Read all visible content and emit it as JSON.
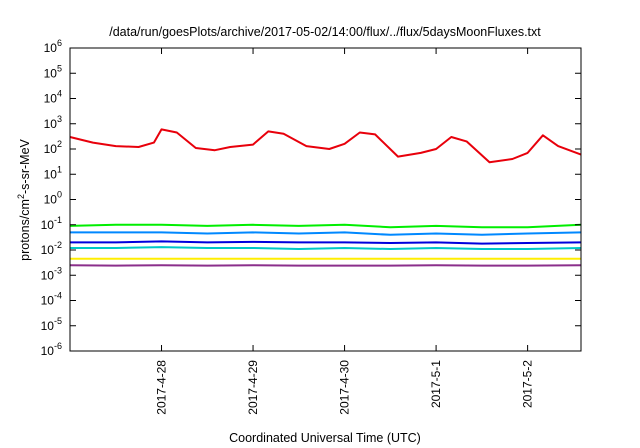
{
  "chart_data": {
    "type": "line",
    "title": "/data/run/goesPlots/archive/2017-05-02/14:00/flux/../flux/5daysMoonFluxes.txt",
    "xlabel": "Coordinated Universal Time (UTC)",
    "ylabel_parts": {
      "pre": "protons/cm",
      "sup": "2",
      "post": "-s-sr-MeV"
    },
    "y_scale": "log",
    "ylim": [
      1e-06,
      1000000.0
    ],
    "y_ticks": [
      {
        "base": "10",
        "exp": "-6"
      },
      {
        "base": "10",
        "exp": "-5"
      },
      {
        "base": "10",
        "exp": "-4"
      },
      {
        "base": "10",
        "exp": "-3"
      },
      {
        "base": "10",
        "exp": "-2"
      },
      {
        "base": "10",
        "exp": "-1"
      },
      {
        "base": "10",
        "exp": "0"
      },
      {
        "base": "10",
        "exp": "1"
      },
      {
        "base": "10",
        "exp": "2"
      },
      {
        "base": "10",
        "exp": "3"
      },
      {
        "base": "10",
        "exp": "4"
      },
      {
        "base": "10",
        "exp": "5"
      },
      {
        "base": "10",
        "exp": "6"
      }
    ],
    "xlim": [
      "2017-04-27T00:00",
      "2017-05-02T14:00"
    ],
    "x_tick_labels": [
      {
        "date": "2017-04-28",
        "label": "2017-4-28"
      },
      {
        "date": "2017-04-29",
        "label": "2017-4-29"
      },
      {
        "date": "2017-04-30",
        "label": "2017-4-30"
      },
      {
        "date": "2017-05-01",
        "label": "2017-5-1"
      },
      {
        "date": "2017-05-02",
        "label": "2017-5-2"
      }
    ],
    "grid": false,
    "legend": "none",
    "series": [
      {
        "color": "#e8000b",
        "x": [
          "2017-04-27T00:00",
          "2017-04-27T06:00",
          "2017-04-27T12:00",
          "2017-04-27T18:00",
          "2017-04-27T22:00",
          "2017-04-28T00:00",
          "2017-04-28T04:00",
          "2017-04-28T09:00",
          "2017-04-28T14:00",
          "2017-04-28T18:00",
          "2017-04-29T00:00",
          "2017-04-29T04:00",
          "2017-04-29T08:00",
          "2017-04-29T14:00",
          "2017-04-29T20:00",
          "2017-04-30T00:00",
          "2017-04-30T04:00",
          "2017-04-30T08:00",
          "2017-04-30T14:00",
          "2017-04-30T20:00",
          "2017-05-01T00:00",
          "2017-05-01T04:00",
          "2017-05-01T08:00",
          "2017-05-01T14:00",
          "2017-05-01T20:00",
          "2017-05-02T00:00",
          "2017-05-02T04:00",
          "2017-05-02T08:00",
          "2017-05-02T14:00"
        ],
        "y": [
          300,
          180,
          130,
          120,
          180,
          600,
          450,
          110,
          90,
          120,
          150,
          500,
          400,
          130,
          100,
          160,
          450,
          380,
          50,
          70,
          100,
          300,
          200,
          30,
          40,
          70,
          350,
          130,
          60
        ]
      },
      {
        "color": "#00ee00",
        "x": [
          "2017-04-27T00:00",
          "2017-04-27T12:00",
          "2017-04-28T00:00",
          "2017-04-28T12:00",
          "2017-04-29T00:00",
          "2017-04-29T12:00",
          "2017-04-30T00:00",
          "2017-04-30T12:00",
          "2017-05-01T00:00",
          "2017-05-01T12:00",
          "2017-05-02T00:00",
          "2017-05-02T14:00"
        ],
        "y": [
          0.09,
          0.1,
          0.1,
          0.09,
          0.1,
          0.09,
          0.1,
          0.08,
          0.09,
          0.08,
          0.08,
          0.1
        ]
      },
      {
        "color": "#0088ff",
        "x": [
          "2017-04-27T00:00",
          "2017-04-27T12:00",
          "2017-04-28T00:00",
          "2017-04-28T12:00",
          "2017-04-29T00:00",
          "2017-04-29T12:00",
          "2017-04-30T00:00",
          "2017-04-30T12:00",
          "2017-05-01T00:00",
          "2017-05-01T12:00",
          "2017-05-02T00:00",
          "2017-05-02T14:00"
        ],
        "y": [
          0.05,
          0.05,
          0.05,
          0.045,
          0.05,
          0.045,
          0.05,
          0.04,
          0.045,
          0.04,
          0.045,
          0.05
        ]
      },
      {
        "color": "#00c8c8",
        "x": [
          "2017-04-27T00:00",
          "2017-04-27T12:00",
          "2017-04-28T00:00",
          "2017-04-28T12:00",
          "2017-04-29T00:00",
          "2017-04-29T12:00",
          "2017-04-30T00:00",
          "2017-04-30T12:00",
          "2017-05-01T00:00",
          "2017-05-01T12:00",
          "2017-05-02T00:00",
          "2017-05-02T14:00"
        ],
        "y": [
          0.012,
          0.012,
          0.013,
          0.012,
          0.012,
          0.011,
          0.012,
          0.011,
          0.012,
          0.011,
          0.011,
          0.012
        ]
      },
      {
        "color": "#0000dd",
        "x": [
          "2017-04-27T00:00",
          "2017-04-27T12:00",
          "2017-04-28T00:00",
          "2017-04-28T12:00",
          "2017-04-29T00:00",
          "2017-04-29T12:00",
          "2017-04-30T00:00",
          "2017-04-30T12:00",
          "2017-05-01T00:00",
          "2017-05-01T12:00",
          "2017-05-02T00:00",
          "2017-05-02T14:00"
        ],
        "y": [
          0.02,
          0.02,
          0.022,
          0.02,
          0.021,
          0.02,
          0.02,
          0.019,
          0.02,
          0.018,
          0.019,
          0.02
        ]
      },
      {
        "color": "#ffee00",
        "x": [
          "2017-04-27T00:00",
          "2017-05-02T14:00"
        ],
        "y": [
          0.0045,
          0.0045
        ]
      },
      {
        "color": "#8b2f8b",
        "x": [
          "2017-04-27T00:00",
          "2017-04-27T12:00",
          "2017-04-28T00:00",
          "2017-04-28T12:00",
          "2017-04-29T00:00",
          "2017-04-29T12:00",
          "2017-04-30T00:00",
          "2017-04-30T12:00",
          "2017-05-01T00:00",
          "2017-05-01T12:00",
          "2017-05-02T00:00",
          "2017-05-02T14:00"
        ],
        "y": [
          0.0025,
          0.0024,
          0.0025,
          0.0024,
          0.0025,
          0.0024,
          0.0024,
          0.0024,
          0.0025,
          0.0024,
          0.0024,
          0.0025
        ]
      }
    ]
  }
}
